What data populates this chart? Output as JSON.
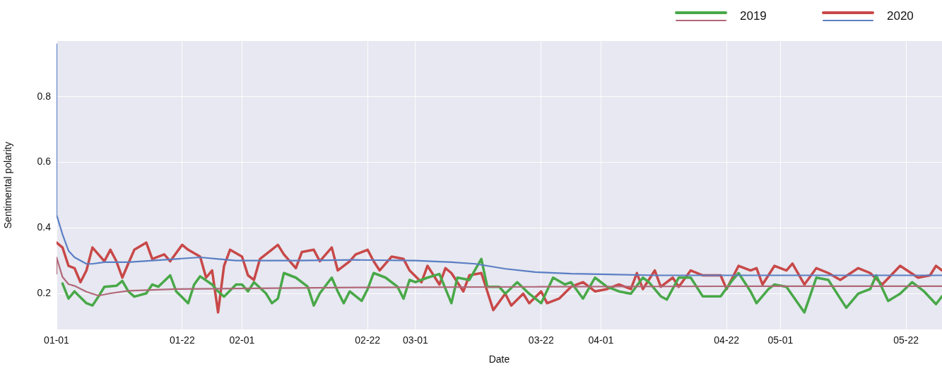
{
  "chart_data": {
    "type": "line",
    "xlabel": "Date",
    "ylabel": "Sentimental polarity",
    "xlim": [
      "--01-01",
      "--05-28"
    ],
    "ylim": [
      0.09,
      0.97
    ],
    "xticks": [
      {
        "value": "--01-01",
        "label": "01-01"
      },
      {
        "value": "--01-22",
        "label": "01-22"
      },
      {
        "value": "--02-01",
        "label": "02-01"
      },
      {
        "value": "--02-22",
        "label": "02-22"
      },
      {
        "value": "--03-01",
        "label": "03-01"
      },
      {
        "value": "--03-22",
        "label": "03-22"
      },
      {
        "value": "--04-01",
        "label": "04-01"
      },
      {
        "value": "--04-22",
        "label": "04-22"
      },
      {
        "value": "--05-01",
        "label": "05-01"
      },
      {
        "value": "--05-22",
        "label": "05-22"
      }
    ],
    "yticks": [
      0.2,
      0.4,
      0.6,
      0.8
    ],
    "grid": true,
    "legend": "top right",
    "marker": "none",
    "line_style": "solid",
    "series": [
      {
        "name": "2019",
        "color": "#48a848",
        "x": [
          "--01-02",
          "--01-03",
          "--01-04",
          "--01-06",
          "--01-07",
          "--01-08",
          "--01-09",
          "--01-11",
          "--01-12",
          "--01-13",
          "--01-14",
          "--01-16",
          "--01-17",
          "--01-18",
          "--01-20",
          "--01-21",
          "--01-23",
          "--01-24",
          "--01-25",
          "--01-27",
          "--01-28",
          "--01-29",
          "--01-31",
          "--02-01",
          "--02-02",
          "--02-03",
          "--02-05",
          "--02-06",
          "--02-07",
          "--02-08",
          "--02-10",
          "--02-12",
          "--02-13",
          "--02-14",
          "--02-16",
          "--02-17",
          "--02-18",
          "--02-19",
          "--02-21",
          "--02-22",
          "--02-23",
          "--02-25",
          "--02-27",
          "--02-28",
          "--02-29",
          "--03-01",
          "--03-03",
          "--03-05",
          "--03-07",
          "--03-08",
          "--03-10",
          "--03-12",
          "--03-13",
          "--03-15",
          "--03-16",
          "--03-18",
          "--03-20",
          "--03-22",
          "--03-24",
          "--03-26",
          "--03-27",
          "--03-29",
          "--03-31",
          "--04-02",
          "--04-04",
          "--04-06",
          "--04-08",
          "--04-09",
          "--04-11",
          "--04-12",
          "--04-14",
          "--04-16",
          "--04-18",
          "--04-21",
          "--04-23",
          "--04-24",
          "--04-26",
          "--04-27",
          "--04-29",
          "--04-30",
          "--05-02",
          "--05-05",
          "--05-07",
          "--05-09",
          "--05-11",
          "--05-12",
          "--05-14",
          "--05-16",
          "--05-17",
          "--05-19",
          "--05-21",
          "--05-23",
          "--05-25",
          "--05-27",
          "--05-28"
        ],
        "values": [
          0.23,
          0.184,
          0.206,
          0.17,
          0.163,
          0.19,
          0.22,
          0.223,
          0.238,
          0.206,
          0.19,
          0.2,
          0.227,
          0.22,
          0.255,
          0.206,
          0.17,
          0.227,
          0.252,
          0.227,
          0.206,
          0.19,
          0.227,
          0.227,
          0.206,
          0.234,
          0.2,
          0.17,
          0.184,
          0.262,
          0.248,
          0.22,
          0.163,
          0.2,
          0.248,
          0.206,
          0.17,
          0.206,
          0.177,
          0.213,
          0.262,
          0.248,
          0.22,
          0.184,
          0.241,
          0.234,
          0.248,
          0.259,
          0.17,
          0.248,
          0.241,
          0.305,
          0.22,
          0.22,
          0.199,
          0.234,
          0.199,
          0.17,
          0.248,
          0.227,
          0.234,
          0.184,
          0.248,
          0.22,
          0.206,
          0.199,
          0.248,
          0.234,
          0.191,
          0.181,
          0.248,
          0.248,
          0.191,
          0.191,
          0.241,
          0.262,
          0.206,
          0.17,
          0.213,
          0.227,
          0.22,
          0.142,
          0.248,
          0.241,
          0.184,
          0.156,
          0.199,
          0.213,
          0.255,
          0.177,
          0.199,
          0.234,
          0.206,
          0.167,
          0.191
        ]
      },
      {
        "color": "#b06878",
        "x": [
          "--01-01",
          "--01-01",
          "--01-02",
          "--01-03",
          "--01-04",
          "--01-06",
          "--01-08",
          "--01-10",
          "--01-13",
          "--01-21",
          "--01-31",
          "--02-20",
          "--03-21",
          "--04-30",
          "--05-28"
        ],
        "values": [
          0.26,
          0.31,
          0.25,
          0.228,
          0.223,
          0.205,
          0.193,
          0.2,
          0.208,
          0.213,
          0.215,
          0.218,
          0.22,
          0.222,
          0.222
        ]
      },
      {
        "name": "2020",
        "color": "#c84848",
        "x": [
          "--01-01",
          "--01-02",
          "--01-03",
          "--01-04",
          "--01-05",
          "--01-06",
          "--01-07",
          "--01-09",
          "--01-10",
          "--01-11",
          "--01-12",
          "--01-13",
          "--01-14",
          "--01-16",
          "--01-17",
          "--01-19",
          "--01-20",
          "--01-22",
          "--01-23",
          "--01-25",
          "--01-26",
          "--01-27",
          "--01-28",
          "--01-29",
          "--01-30",
          "--02-01",
          "--02-02",
          "--02-03",
          "--02-04",
          "--02-07",
          "--02-08",
          "--02-10",
          "--02-11",
          "--02-13",
          "--02-14",
          "--02-16",
          "--02-17",
          "--02-19",
          "--02-20",
          "--02-22",
          "--02-23",
          "--02-24",
          "--02-26",
          "--02-28",
          "--02-29",
          "--03-02",
          "--03-03",
          "--03-05",
          "--03-06",
          "--03-07",
          "--03-09",
          "--03-10",
          "--03-12",
          "--03-13",
          "--03-14",
          "--03-16",
          "--03-17",
          "--03-19",
          "--03-20",
          "--03-22",
          "--03-23",
          "--03-25",
          "--03-27",
          "--03-29",
          "--03-31",
          "--04-02",
          "--04-04",
          "--04-06",
          "--04-07",
          "--04-08",
          "--04-10",
          "--04-11",
          "--04-13",
          "--04-14",
          "--04-16",
          "--04-18",
          "--04-21",
          "--04-22",
          "--04-24",
          "--04-26",
          "--04-27",
          "--04-28",
          "--04-30",
          "--05-02",
          "--05-03",
          "--05-05",
          "--05-07",
          "--05-09",
          "--05-11",
          "--05-14",
          "--05-16",
          "--05-18",
          "--05-21",
          "--05-24",
          "--05-26",
          "--05-27",
          "--05-28"
        ],
        "values": [
          0.355,
          0.34,
          0.284,
          0.277,
          0.234,
          0.27,
          0.34,
          0.298,
          0.333,
          0.298,
          0.248,
          0.291,
          0.333,
          0.355,
          0.305,
          0.319,
          0.298,
          0.348,
          0.333,
          0.312,
          0.248,
          0.27,
          0.142,
          0.284,
          0.333,
          0.312,
          0.255,
          0.241,
          0.305,
          0.348,
          0.319,
          0.277,
          0.326,
          0.333,
          0.298,
          0.34,
          0.27,
          0.298,
          0.319,
          0.333,
          0.298,
          0.27,
          0.312,
          0.305,
          0.27,
          0.234,
          0.284,
          0.227,
          0.277,
          0.262,
          0.206,
          0.255,
          0.262,
          0.206,
          0.149,
          0.199,
          0.163,
          0.199,
          0.17,
          0.206,
          0.17,
          0.184,
          0.22,
          0.234,
          0.206,
          0.213,
          0.227,
          0.213,
          0.262,
          0.213,
          0.27,
          0.22,
          0.248,
          0.22,
          0.27,
          0.255,
          0.255,
          0.213,
          0.284,
          0.27,
          0.277,
          0.227,
          0.284,
          0.27,
          0.291,
          0.227,
          0.277,
          0.262,
          0.241,
          0.277,
          0.262,
          0.227,
          0.284,
          0.248,
          0.255,
          0.284,
          0.27
        ]
      },
      {
        "color": "#5a7ec4",
        "x": [
          "--01-01",
          "--01-01",
          "--01-02",
          "--01-03",
          "--01-04",
          "--01-06",
          "--01-07",
          "--01-09",
          "--01-13",
          "--01-17",
          "--01-21",
          "--01-25",
          "--01-28",
          "--01-31",
          "--02-10",
          "--02-20",
          "--03-01",
          "--03-07",
          "--03-11",
          "--03-16",
          "--03-21",
          "--03-27",
          "--04-02",
          "--04-10",
          "--04-30",
          "--05-28"
        ],
        "values": [
          0.96,
          0.44,
          0.38,
          0.33,
          0.31,
          0.29,
          0.29,
          0.295,
          0.295,
          0.3,
          0.305,
          0.31,
          0.305,
          0.3,
          0.3,
          0.302,
          0.3,
          0.295,
          0.29,
          0.275,
          0.265,
          0.26,
          0.258,
          0.255,
          0.255,
          0.255
        ]
      }
    ]
  }
}
